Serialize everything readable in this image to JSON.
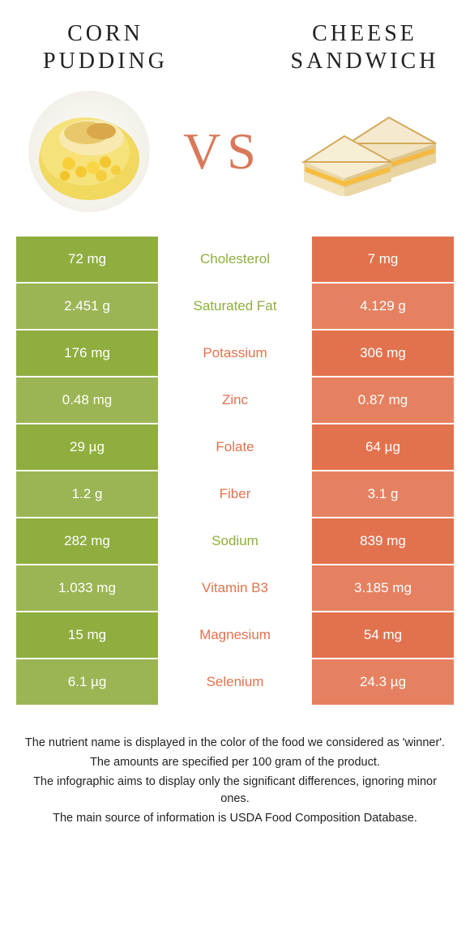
{
  "colors": {
    "left": "#8fae3f",
    "right": "#e2724e",
    "left_alt": "#9bb554",
    "right_alt": "#e58160",
    "mid_text_left": "#8fae3f",
    "mid_text_right": "#e2724e"
  },
  "titles": {
    "left_line1": "CORN",
    "left_line2": "PUDDING",
    "right_line1": "CHEESE",
    "right_line2": "SANDWICH",
    "vs": "VS"
  },
  "rows": [
    {
      "left": "72 mg",
      "label": "Cholesterol",
      "right": "7 mg",
      "winner": "left"
    },
    {
      "left": "2.451 g",
      "label": "Saturated Fat",
      "right": "4.129 g",
      "winner": "left"
    },
    {
      "left": "176 mg",
      "label": "Potassium",
      "right": "306 mg",
      "winner": "right"
    },
    {
      "left": "0.48 mg",
      "label": "Zinc",
      "right": "0.87 mg",
      "winner": "right"
    },
    {
      "left": "29 µg",
      "label": "Folate",
      "right": "64 µg",
      "winner": "right"
    },
    {
      "left": "1.2 g",
      "label": "Fiber",
      "right": "3.1 g",
      "winner": "right"
    },
    {
      "left": "282 mg",
      "label": "Sodium",
      "right": "839 mg",
      "winner": "left"
    },
    {
      "left": "1.033 mg",
      "label": "Vitamin B3",
      "right": "3.185 mg",
      "winner": "right"
    },
    {
      "left": "15 mg",
      "label": "Magnesium",
      "right": "54 mg",
      "winner": "right"
    },
    {
      "left": "6.1 µg",
      "label": "Selenium",
      "right": "24.3 µg",
      "winner": "right"
    }
  ],
  "footnotes": [
    "The nutrient name is displayed in the color of the food we considered as 'winner'.",
    "The amounts are specified per 100 gram of the product.",
    "The infographic aims to display only the significant differences, ignoring minor ones.",
    "The main source of information is USDA Food Composition Database."
  ]
}
